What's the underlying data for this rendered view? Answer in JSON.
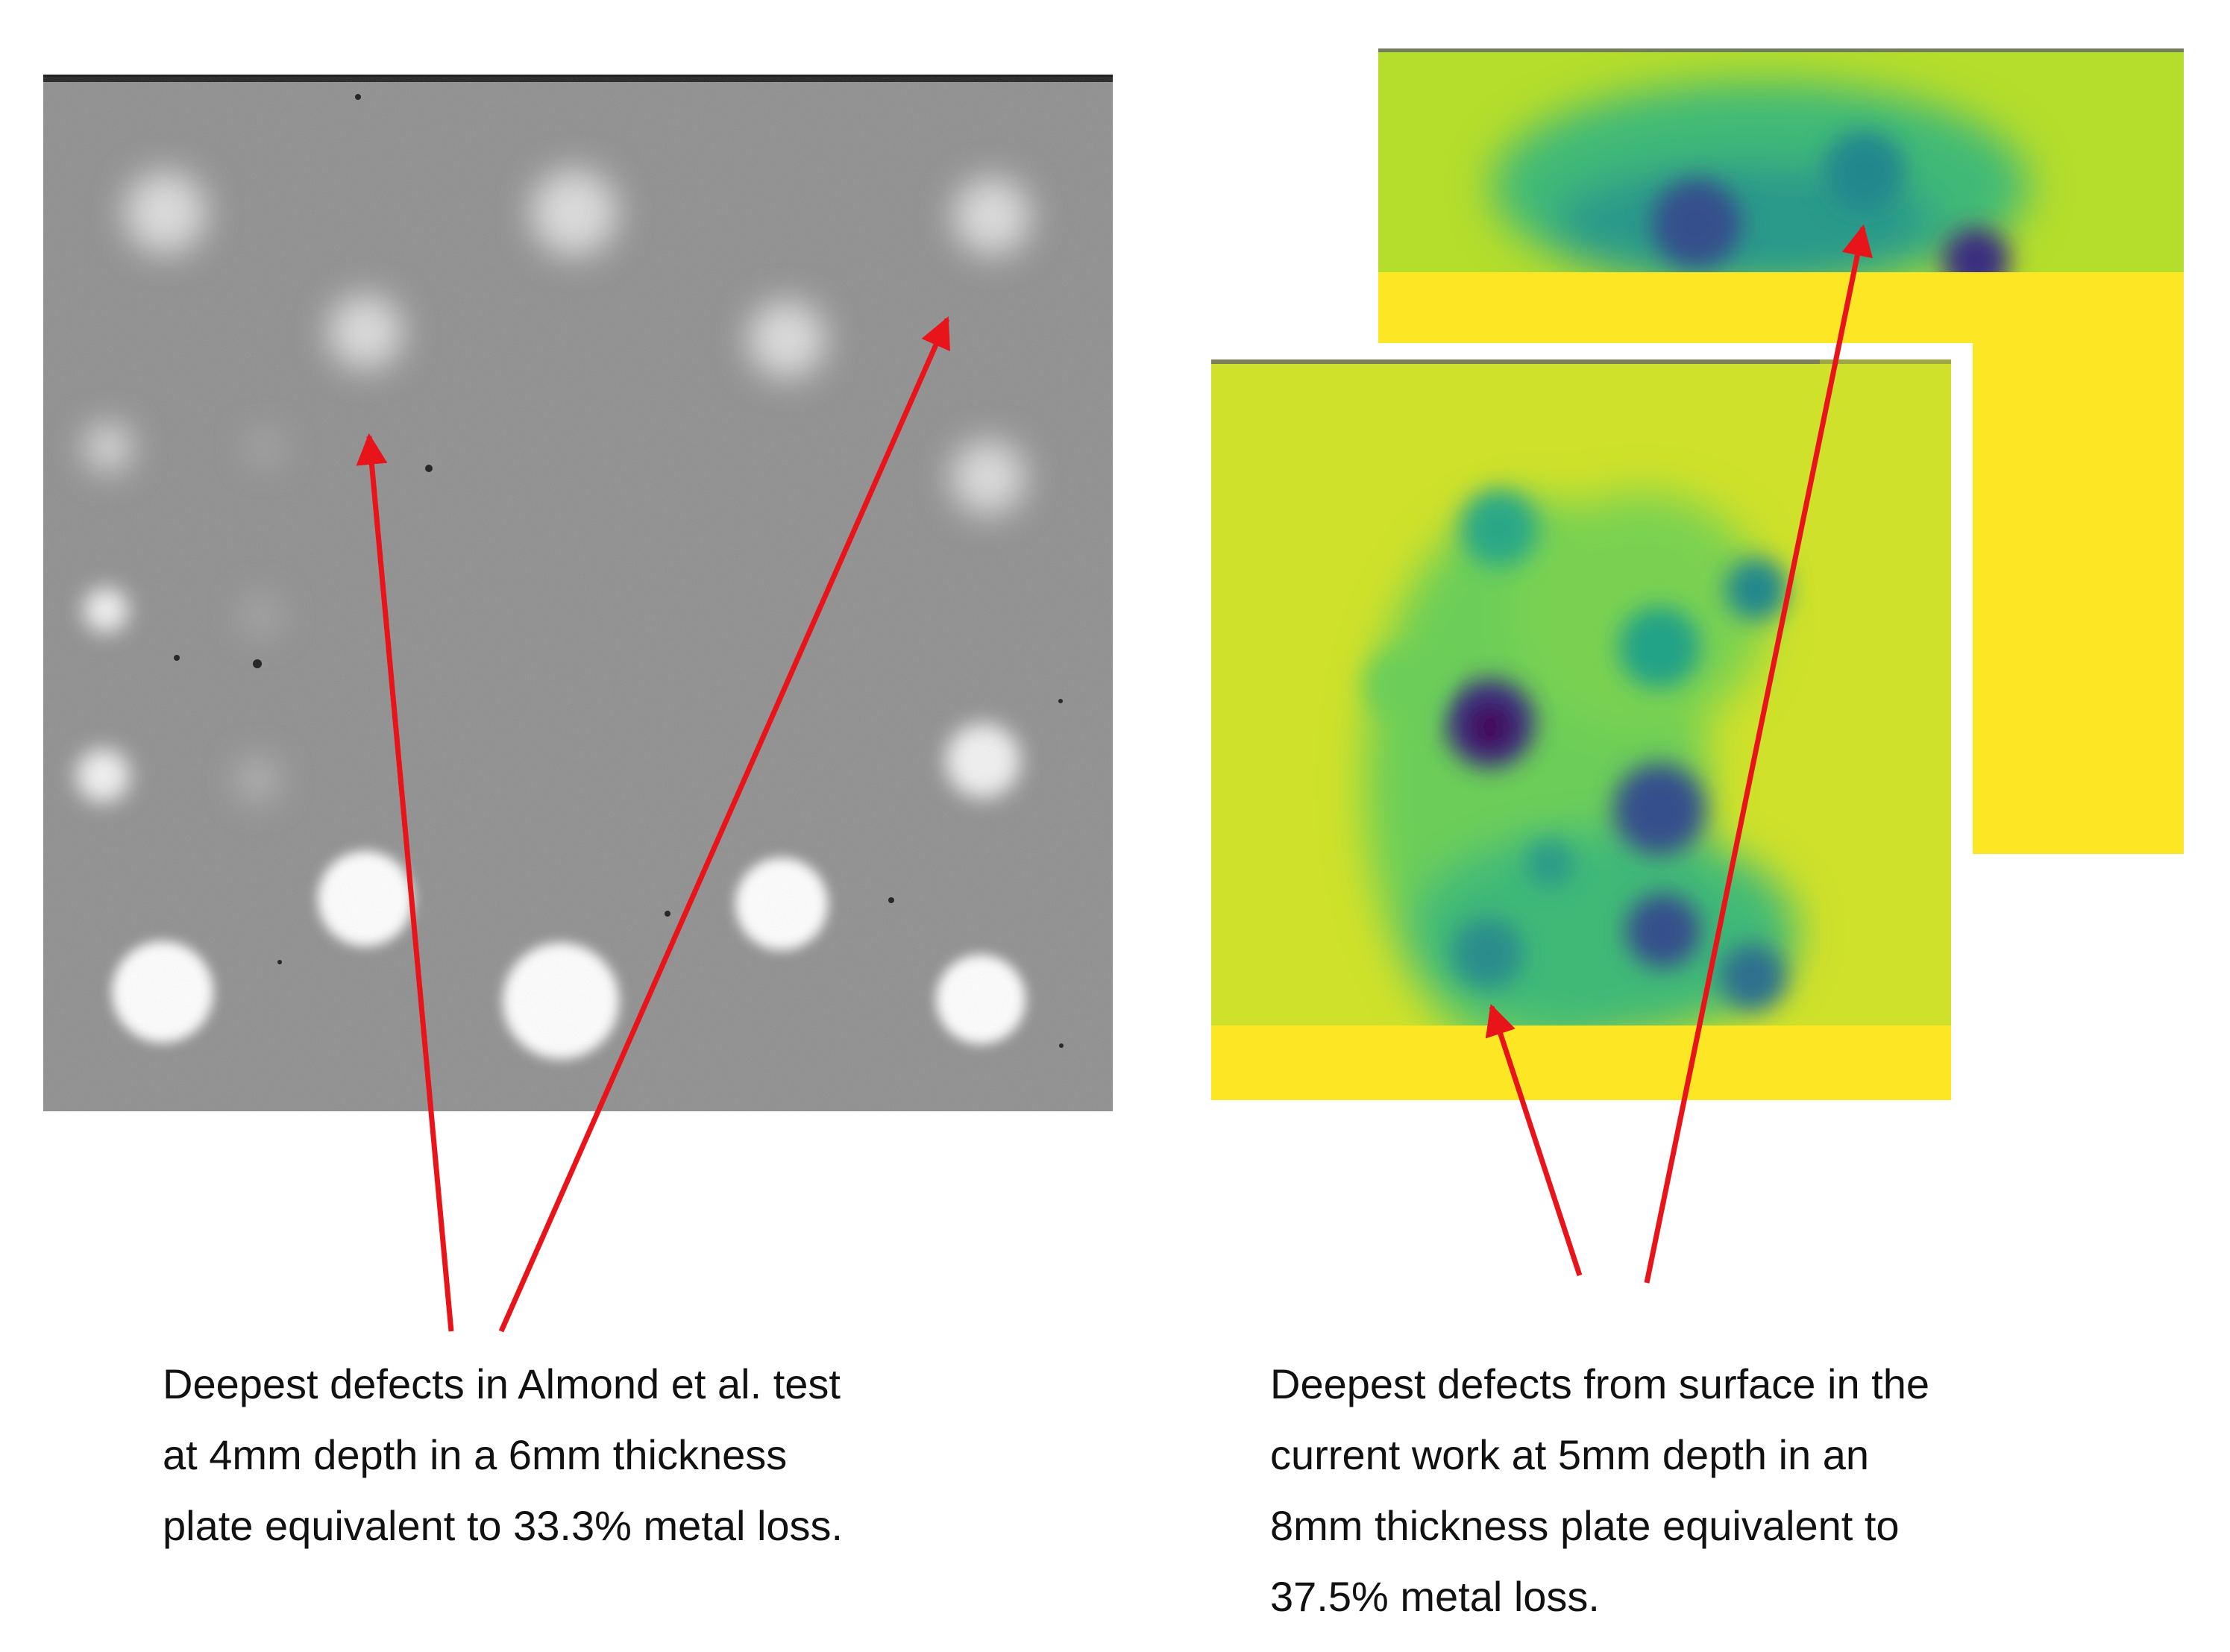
{
  "colors": {
    "arrow": "#e8141a",
    "thermal_background": "#8f8f8f",
    "thermal_hot": "#ffffff",
    "viridis_yellow": "#fde724",
    "viridis_green": "#b5dd2b",
    "viridis_teal": "#2a9a8a",
    "viridis_blue": "#34508c",
    "viridis_purple": "#440154",
    "caption_text": "#111111"
  },
  "captions": {
    "left": {
      "lines": [
        "Deepest defects in Almond et al. test",
        "at 4mm depth in a 6mm thickness",
        "plate equivalent to 33.3% metal loss."
      ]
    },
    "right": {
      "lines": [
        "Deepest defects from surface in the",
        "current work at 5mm depth in an",
        "8mm thickness plate equivalent to",
        "37.5% metal loss."
      ]
    }
  }
}
